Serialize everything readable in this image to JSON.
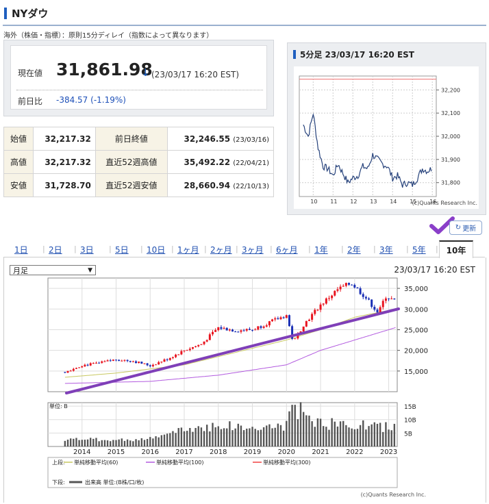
{
  "header": {
    "title": "NYダウ",
    "notice": "海外（株価・指標）：原則15分ディレイ（指数によって異なります）"
  },
  "price": {
    "now_label": "現在値",
    "value": "31,861.98",
    "arrow": "↓",
    "time": "(23/03/17 16:20 EST)",
    "change_label": "前日比",
    "change": "-384.57 (-1.19%)"
  },
  "ohlc": {
    "rows": [
      {
        "label": "始値",
        "value": "32,217.32",
        "label2": "前日終値",
        "value2": "32,246.55",
        "date2": "(23/03/16)"
      },
      {
        "label": "高値",
        "value": "32,217.32",
        "label2": "直近52週高値",
        "value2": "35,492.22",
        "date2": "(22/04/21)"
      },
      {
        "label": "安値",
        "value": "31,728.70",
        "label2": "直近52週安値",
        "value2": "28,660.94",
        "date2": "(22/10/13)"
      }
    ]
  },
  "intraday": {
    "title": "5分足 23/03/17 16:20 EST",
    "credit": "(c)Quants Research Inc.",
    "y_ticks": [
      "32,200",
      "32,100",
      "32,000",
      "31,900",
      "31,800"
    ],
    "x_ticks": [
      "10",
      "11",
      "12",
      "13",
      "14",
      "15",
      "16"
    ]
  },
  "refresh_label": "更新",
  "tabs": [
    "1日",
    "2日",
    "3日",
    "5日",
    "10日",
    "1ヶ月",
    "2ヶ月",
    "3ヶ月",
    "6ヶ月",
    "1年",
    "2年",
    "3年",
    "5年",
    "10年"
  ],
  "selected_tab": "10年",
  "main_chart": {
    "select_value": "月足",
    "time": "23/03/17 16:20 EST",
    "price_ticks": [
      "35,000",
      "30,000",
      "25,000",
      "20,000",
      "15,000"
    ],
    "vol_label": "単位: B",
    "vol_ticks": [
      "15B",
      "10B",
      "5B"
    ],
    "year_ticks": [
      "2014",
      "2015",
      "2016",
      "2017",
      "2018",
      "2019",
      "2020",
      "2021",
      "2022",
      "2023"
    ],
    "legend_top_label": "上段:",
    "legend_bottom_label": "下段:",
    "legend": [
      "単純移動平均(60)",
      "単純移動平均(100)",
      "単純移動平均(300)"
    ],
    "volume_legend": "出来高 単位:(B株/口/枚)",
    "credit": "(c)Quants Research Inc."
  },
  "colors": {
    "accent": "#1f5fbf",
    "up": "#e8141f",
    "down": "#1a2fb5",
    "ma60": "#c8c860",
    "ma100": "#b25adf",
    "ma300": "#f04040",
    "trend": "#7f3fb8"
  },
  "chart_data": [
    {
      "type": "line",
      "title": "5分足 23/03/17 16:20 EST",
      "xlabel": "",
      "ylabel": "",
      "ylim": [
        31740,
        32260
      ],
      "x": [
        9.5,
        9.75,
        10.0,
        10.25,
        10.5,
        10.75,
        11.0,
        11.25,
        11.5,
        11.75,
        12.0,
        12.25,
        12.5,
        12.75,
        13.0,
        13.25,
        13.5,
        13.75,
        14.0,
        14.25,
        14.5,
        14.75,
        15.0,
        15.25,
        15.5,
        15.75,
        16.0
      ],
      "values": [
        32050,
        32000,
        32100,
        31950,
        31870,
        31860,
        31830,
        31880,
        31840,
        31800,
        31820,
        31830,
        31870,
        31860,
        31920,
        31900,
        31880,
        31870,
        31820,
        31830,
        31790,
        31800,
        31790,
        31820,
        31860,
        31850,
        31862
      ],
      "reference_line": 32246.55
    },
    {
      "type": "candlestick",
      "title": "",
      "x_range": [
        2013,
        2023.25
      ],
      "ylim": [
        10000,
        37500
      ],
      "series": [
        {
          "name": "price",
          "x": [
            2013.5,
            2014.0,
            2014.5,
            2015.0,
            2015.5,
            2016.0,
            2016.5,
            2017.0,
            2017.5,
            2018.0,
            2018.5,
            2019.0,
            2019.5,
            2020.0,
            2020.2,
            2020.5,
            2021.0,
            2021.5,
            2021.9,
            2022.3,
            2022.7,
            2022.9,
            2023.2
          ],
          "values": [
            14800,
            16400,
            16900,
            17800,
            17400,
            16300,
            17900,
            20000,
            21500,
            25500,
            24800,
            25000,
            26800,
            28500,
            21900,
            26200,
            31000,
            34700,
            36300,
            33000,
            29000,
            33100,
            31862
          ]
        },
        {
          "name": "単純移動平均(60)",
          "x": [
            2013.5,
            2015,
            2017,
            2018.5,
            2020,
            2021,
            2022,
            2023.2
          ],
          "values": [
            13500,
            14500,
            16500,
            19500,
            22500,
            25000,
            28000,
            30000
          ]
        },
        {
          "name": "単純移動平均(100)",
          "x": [
            2013.5,
            2016,
            2018,
            2020,
            2021,
            2022,
            2023.2
          ],
          "values": [
            12000,
            12500,
            14000,
            16500,
            20000,
            22500,
            25500
          ]
        }
      ]
    },
    {
      "type": "bar",
      "title": "",
      "ylabel": "単位: B",
      "ylim": [
        0,
        15
      ],
      "x": [
        2014,
        2015,
        2016,
        2017,
        2018,
        2019,
        2020,
        2020.2,
        2021,
        2022,
        2023
      ],
      "values": [
        2.8,
        2.5,
        3.0,
        6.5,
        8.5,
        7.0,
        8.0,
        15.5,
        9.0,
        8.5,
        7.5
      ]
    }
  ]
}
